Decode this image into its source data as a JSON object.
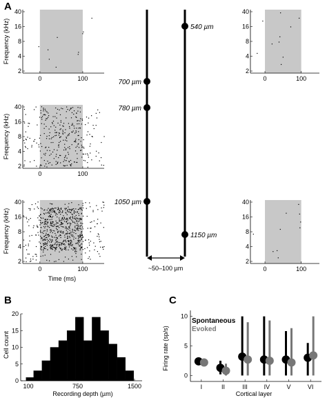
{
  "panels": {
    "a": "A",
    "b": "B",
    "c": "C"
  },
  "raster": {
    "y_tick_labels": [
      "40",
      "16",
      "8",
      "4",
      "2"
    ],
    "x_tick_labels": [
      "0",
      "100"
    ],
    "ylabel": "Frequency (kHz)",
    "xlabel": "Time (ms)",
    "stimulus_window_ms": [
      0,
      100
    ],
    "plots": [
      {
        "name": "left-540",
        "density": "sparse"
      },
      {
        "name": "right-540",
        "density": "sparse"
      },
      {
        "name": "left-780",
        "density": "medium"
      },
      {
        "name": "left-1050",
        "density": "dense"
      },
      {
        "name": "right-1150",
        "density": "sparse"
      }
    ]
  },
  "probes": {
    "depths": [
      {
        "label": "540 µm"
      },
      {
        "label": "700 µm"
      },
      {
        "label": "780 µm"
      },
      {
        "label": "1050 µm"
      },
      {
        "label": "1150 µm"
      }
    ],
    "spacing_label": "~50–100 µm"
  },
  "chart_data": [
    {
      "panel": "B",
      "type": "bar",
      "title": "",
      "xlabel": "Recording depth (µm)",
      "ylabel": "Cell count",
      "x_tick_labels": [
        "100",
        "750",
        "1500"
      ],
      "y_tick_labels": [
        "0",
        "5",
        "10",
        "15",
        "20"
      ],
      "ylim": [
        0,
        20
      ],
      "xlim": [
        0,
        1600
      ],
      "bin_edges": [
        70,
        170,
        280,
        390,
        500,
        610,
        720,
        830,
        940,
        1050,
        1160,
        1270,
        1380,
        1490
      ],
      "values": [
        1,
        3,
        6,
        10,
        12,
        15,
        19,
        12,
        19,
        15,
        11,
        7,
        3
      ]
    },
    {
      "panel": "C",
      "type": "scatter",
      "title": "",
      "xlabel": "Cortical layer",
      "ylabel": "Firing rate (sp/s)",
      "categories": [
        "I",
        "II",
        "III",
        "IV",
        "V",
        "VI"
      ],
      "y_tick_labels": [
        "0",
        "5",
        "10"
      ],
      "ylim": [
        -1,
        11
      ],
      "series": [
        {
          "name": "Spontaneous",
          "color": "#000000",
          "values": [
            2.4,
            1.3,
            3.2,
            2.7,
            2.7,
            3.0
          ],
          "err_low": [
            2.0,
            0.2,
            0.0,
            0.0,
            0.0,
            0.0
          ],
          "err_high": [
            2.8,
            2.5,
            10.0,
            10.0,
            7.5,
            5.5
          ]
        },
        {
          "name": "Evoked",
          "color": "#777777",
          "values": [
            2.2,
            0.8,
            2.7,
            2.5,
            2.2,
            3.4
          ],
          "err_low": [
            1.6,
            0.0,
            0.0,
            0.0,
            0.0,
            0.0
          ],
          "err_high": [
            2.6,
            2.0,
            9.0,
            9.3,
            8.0,
            10.0
          ]
        }
      ]
    }
  ]
}
